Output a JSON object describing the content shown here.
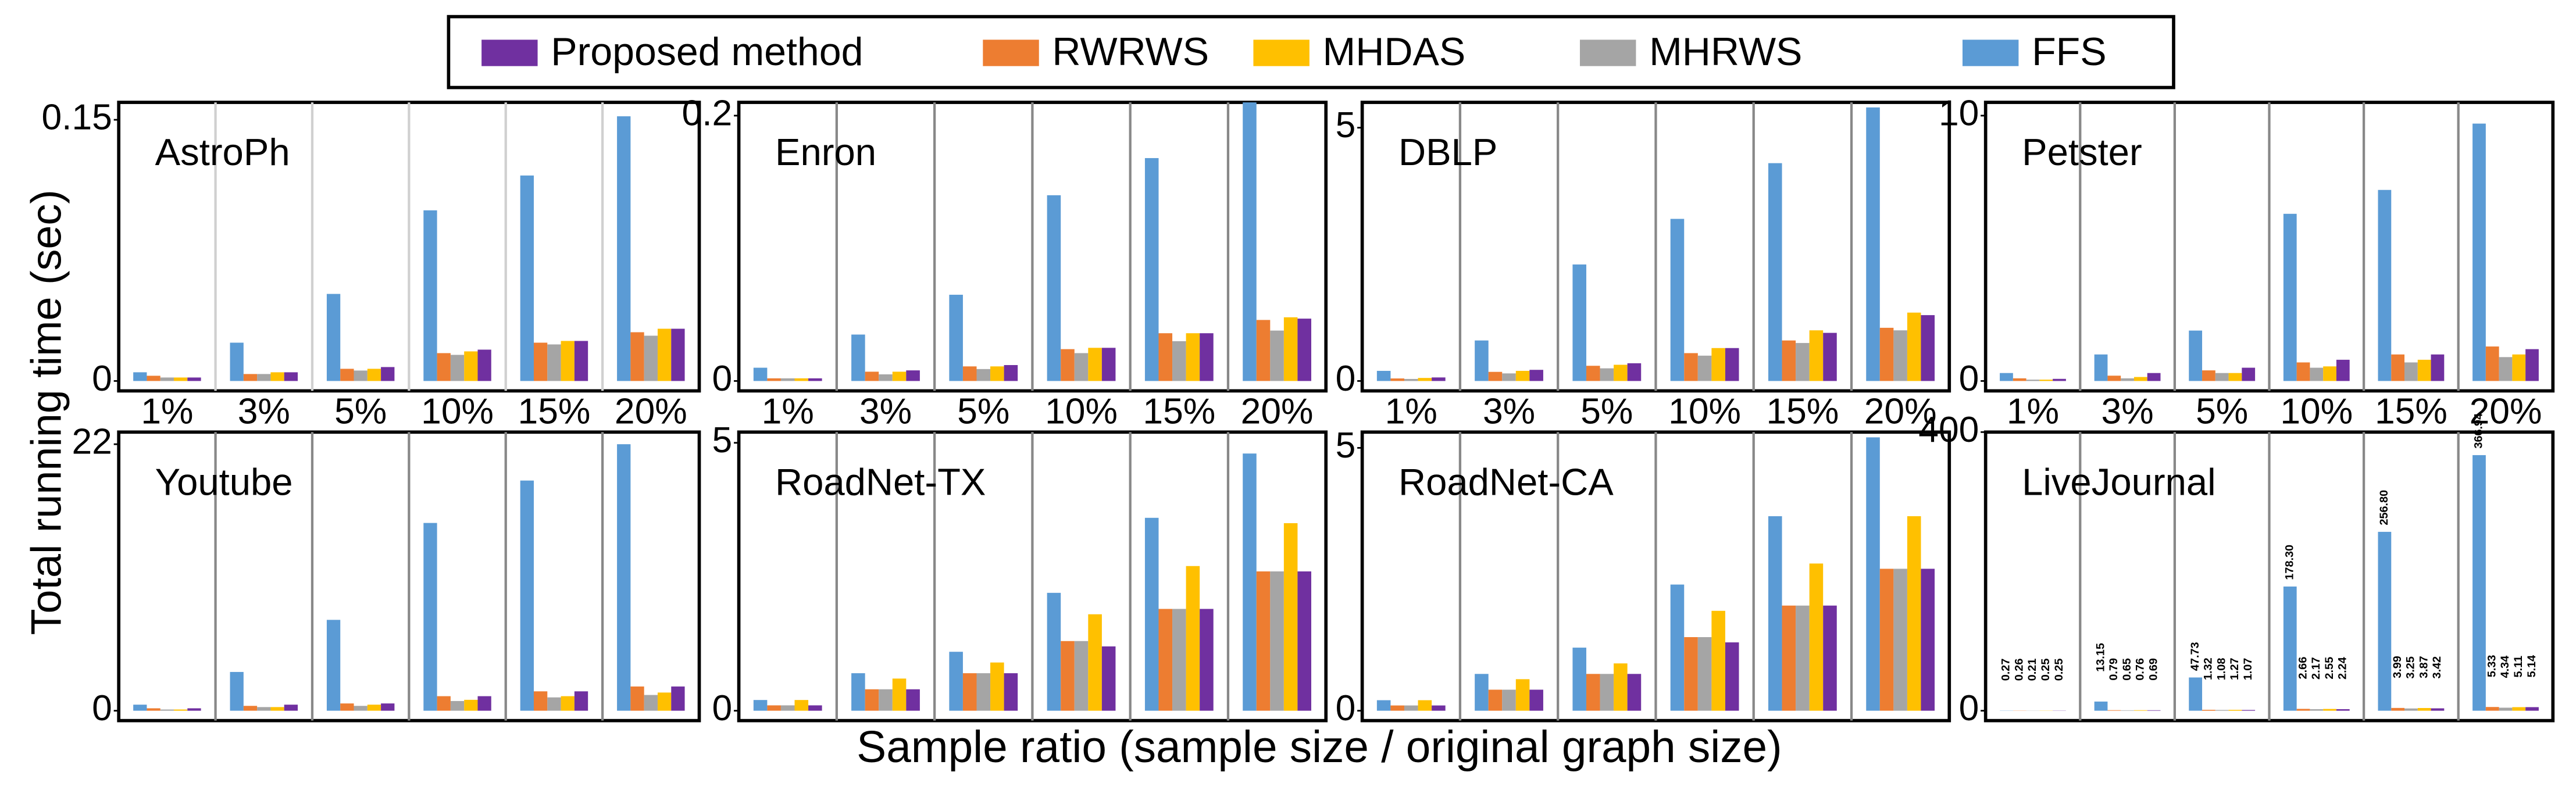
{
  "legend": [
    {
      "name": "Proposed method",
      "color": "#7030a0"
    },
    {
      "name": "RWRWS",
      "color": "#ed7d31"
    },
    {
      "name": "MHDAS",
      "color": "#ffc000"
    },
    {
      "name": "MHRWS",
      "color": "#a5a5a5"
    },
    {
      "name": "FFS",
      "color": "#5b9bd5"
    }
  ],
  "ylabel": "Total running time (sec)",
  "xlabel": "Sample ratio (sample size / original graph size)",
  "chart_data": [
    {
      "type": "bar",
      "title": "AstroPh",
      "categories": [
        "1%",
        "3%",
        "5%",
        "10%",
        "15%",
        "20%"
      ],
      "ylim": [
        0,
        0.16
      ],
      "yticks": [
        0,
        0.15
      ],
      "series": [
        {
          "values": [
            0.002,
            0.005,
            0.008,
            0.018,
            0.023,
            0.03
          ]
        },
        {
          "values": [
            0.003,
            0.004,
            0.007,
            0.016,
            0.022,
            0.028
          ]
        },
        {
          "values": [
            0.002,
            0.005,
            0.007,
            0.017,
            0.023,
            0.03
          ]
        },
        {
          "values": [
            0.002,
            0.004,
            0.006,
            0.015,
            0.021,
            0.026
          ]
        },
        {
          "values": [
            0.005,
            0.022,
            0.05,
            0.098,
            0.118,
            0.152
          ]
        }
      ]
    },
    {
      "type": "bar",
      "title": "Enron",
      "categories": [
        "1%",
        "3%",
        "5%",
        "10%",
        "15%",
        "20%"
      ],
      "ylim": [
        0,
        0.21
      ],
      "yticks": [
        0,
        0.2
      ],
      "series": [
        {
          "values": [
            0.002,
            0.008,
            0.012,
            0.025,
            0.036,
            0.047
          ]
        },
        {
          "values": [
            0.002,
            0.007,
            0.011,
            0.024,
            0.036,
            0.046
          ]
        },
        {
          "values": [
            0.002,
            0.007,
            0.011,
            0.025,
            0.036,
            0.048
          ]
        },
        {
          "values": [
            0.002,
            0.005,
            0.009,
            0.021,
            0.03,
            0.038
          ]
        },
        {
          "values": [
            0.01,
            0.035,
            0.065,
            0.14,
            0.168,
            0.21
          ]
        }
      ]
    },
    {
      "type": "bar",
      "title": "DBLP",
      "categories": [
        "1%",
        "3%",
        "5%",
        "10%",
        "15%",
        "20%"
      ],
      "ylim": [
        0,
        5.5
      ],
      "yticks": [
        0,
        5
      ],
      "series": [
        {
          "values": [
            0.07,
            0.22,
            0.35,
            0.65,
            0.95,
            1.3
          ]
        },
        {
          "values": [
            0.05,
            0.18,
            0.3,
            0.55,
            0.8,
            1.05
          ]
        },
        {
          "values": [
            0.06,
            0.2,
            0.32,
            0.65,
            1.0,
            1.35
          ]
        },
        {
          "values": [
            0.04,
            0.15,
            0.25,
            0.5,
            0.75,
            1.0
          ]
        },
        {
          "values": [
            0.2,
            0.8,
            2.3,
            3.2,
            4.3,
            5.4
          ]
        }
      ]
    },
    {
      "type": "bar",
      "title": "Petster",
      "categories": [
        "1%",
        "3%",
        "5%",
        "10%",
        "15%",
        "20%"
      ],
      "ylim": [
        0,
        10.5
      ],
      "yticks": [
        0,
        10
      ],
      "series": [
        {
          "values": [
            0.08,
            0.3,
            0.5,
            0.8,
            1.0,
            1.2
          ]
        },
        {
          "values": [
            0.1,
            0.2,
            0.4,
            0.7,
            1.0,
            1.3
          ]
        },
        {
          "values": [
            0.05,
            0.15,
            0.3,
            0.55,
            0.8,
            1.0
          ]
        },
        {
          "values": [
            0.05,
            0.1,
            0.3,
            0.5,
            0.7,
            0.9
          ]
        },
        {
          "values": [
            0.3,
            1.0,
            1.9,
            6.3,
            7.2,
            9.7
          ]
        }
      ]
    },
    {
      "type": "bar",
      "title": "Youtube",
      "ylim": [
        0,
        23
      ],
      "yticks": [
        0,
        22
      ],
      "series": [
        {
          "values": [
            0.2,
            0.5,
            0.6,
            1.2,
            1.6,
            2.0
          ]
        },
        {
          "values": [
            0.2,
            0.4,
            0.6,
            1.2,
            1.6,
            2.0
          ]
        },
        {
          "values": [
            0.1,
            0.3,
            0.5,
            0.9,
            1.2,
            1.5
          ]
        },
        {
          "values": [
            0.1,
            0.3,
            0.4,
            0.8,
            1.1,
            1.3
          ]
        },
        {
          "values": [
            0.5,
            3.2,
            7.5,
            15.5,
            19,
            22
          ]
        }
      ]
    },
    {
      "type": "bar",
      "title": "RoadNet-TX",
      "ylim": [
        0,
        5.2
      ],
      "yticks": [
        0,
        5
      ],
      "series": [
        {
          "values": [
            0.1,
            0.4,
            0.7,
            1.2,
            1.9,
            2.6
          ]
        },
        {
          "values": [
            0.1,
            0.4,
            0.7,
            1.3,
            1.9,
            2.6
          ]
        },
        {
          "values": [
            0.2,
            0.6,
            0.9,
            1.8,
            2.7,
            3.5
          ]
        },
        {
          "values": [
            0.1,
            0.4,
            0.7,
            1.3,
            1.9,
            2.6
          ]
        },
        {
          "values": [
            0.2,
            0.7,
            1.1,
            2.2,
            3.6,
            4.8
          ]
        }
      ]
    },
    {
      "type": "bar",
      "title": "RoadNet-CA",
      "ylim": [
        0,
        5.3
      ],
      "yticks": [
        0,
        5
      ],
      "series": [
        {
          "values": [
            0.1,
            0.4,
            0.7,
            1.3,
            2.0,
            2.7
          ]
        },
        {
          "values": [
            0.1,
            0.4,
            0.7,
            1.4,
            2.0,
            2.7
          ]
        },
        {
          "values": [
            0.2,
            0.6,
            0.9,
            1.9,
            2.8,
            3.7
          ]
        },
        {
          "values": [
            0.1,
            0.4,
            0.7,
            1.4,
            2.0,
            2.7
          ]
        },
        {
          "values": [
            0.2,
            0.7,
            1.2,
            2.4,
            3.7,
            5.2
          ]
        }
      ]
    },
    {
      "type": "bar",
      "title": "LiveJournal",
      "ylim": [
        0,
        400
      ],
      "yticks": [
        0,
        400
      ],
      "series": [
        {
          "values": [
            0.25,
            0.69,
            1.07,
            2.24,
            3.42,
            5.14
          ],
          "value_labels": [
            "0.25",
            "0.69",
            "1.07",
            "2.24",
            "3.42",
            "5.14"
          ]
        },
        {
          "values": [
            0.26,
            0.79,
            1.32,
            2.66,
            3.99,
            5.33
          ],
          "value_labels": [
            "0.26",
            "0.79",
            "1.32",
            "2.66",
            "3.99",
            "5.33"
          ]
        },
        {
          "values": [
            0.25,
            0.76,
            1.27,
            2.55,
            3.87,
            5.11
          ],
          "value_labels": [
            "0.25",
            "0.76",
            "1.27",
            "2.55",
            "3.87",
            "5.11"
          ]
        },
        {
          "values": [
            0.21,
            0.65,
            1.08,
            2.17,
            3.25,
            4.34
          ],
          "value_labels": [
            "0.21",
            "0.65",
            "1.08",
            "2.17",
            "3.25",
            "4.34"
          ]
        },
        {
          "values": [
            0.27,
            13.15,
            47.73,
            178.3,
            256.8,
            366.94
          ],
          "value_labels": [
            "0.27",
            "13.15",
            "47.73",
            "178.30",
            "256.80",
            "366.94"
          ]
        }
      ]
    }
  ]
}
